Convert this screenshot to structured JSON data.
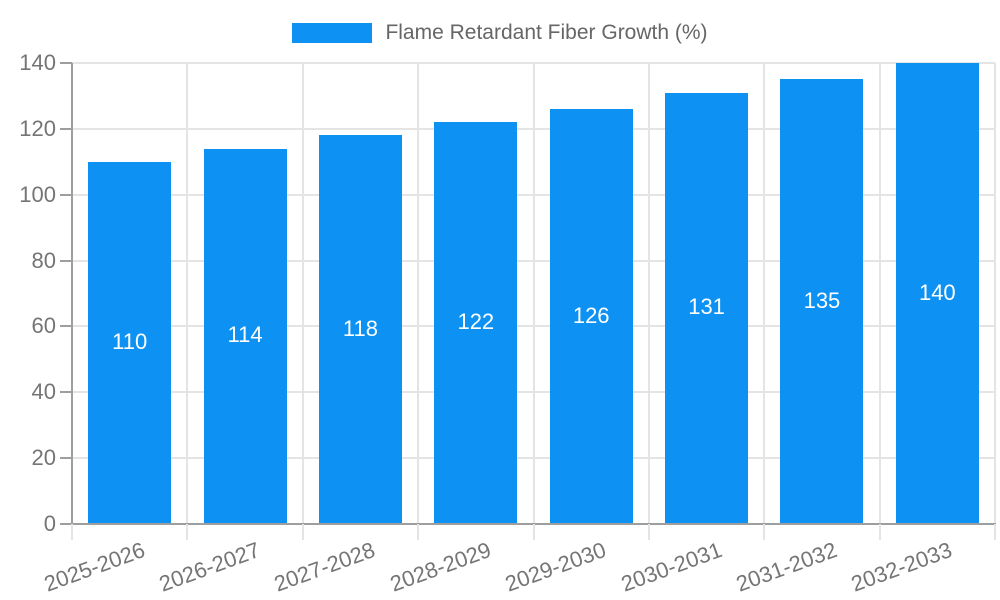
{
  "legend": {
    "label": "Flame Retardant Fiber Growth (%)"
  },
  "chart_data": {
    "type": "bar",
    "title": "Flame Retardant Fiber Growth (%)",
    "series_name": "Flame Retardant Fiber Growth (%)",
    "categories": [
      "2025-2026",
      "2026-2027",
      "2027-2028",
      "2028-2029",
      "2029-2030",
      "2030-2031",
      "2031-2032",
      "2032-2033"
    ],
    "values": [
      110,
      114,
      118,
      122,
      126,
      131,
      135,
      140
    ],
    "xlabel": "",
    "ylabel": "",
    "ylim": [
      0,
      140
    ],
    "yticks": [
      0,
      20,
      40,
      60,
      80,
      100,
      120,
      140
    ],
    "grid": true,
    "legend_position": "top-center",
    "value_labels": "inside-bars",
    "x_tick_label_rotation_deg": -20
  },
  "style": {
    "bar_color": "#0d92f4",
    "axis_color": "#9e9e9e",
    "grid_color": "#e4e4e4",
    "tick_label_color": "#757575",
    "legend_text_color": "#666666",
    "value_label_color": "#ffffff",
    "background_color": "#ffffff"
  }
}
